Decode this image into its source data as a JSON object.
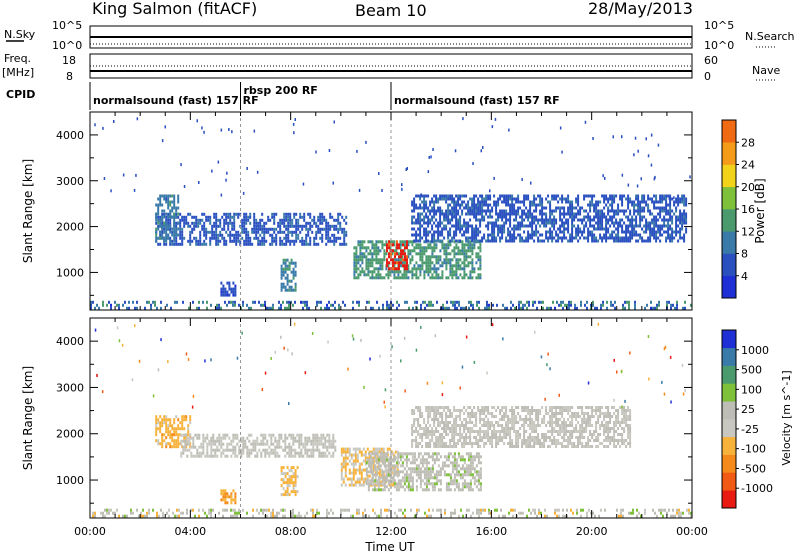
{
  "header": {
    "station": "King Salmon (fitACF)",
    "beam": "Beam 10",
    "date": "28/May/2013"
  },
  "summary_panels": {
    "nsky_label": "N.Sky",
    "nsky_ticks": [
      "10^5",
      "10^0"
    ],
    "nsearch_label": "N.Search",
    "nsearch_ticks": [
      "10^5",
      "10^0"
    ],
    "freq_label_line1": "Freq.",
    "freq_label_line2": "[MHz]",
    "freq_ticks": [
      "18",
      "8"
    ],
    "nave_label": "Nave",
    "nave_ticks": [
      "60",
      "0"
    ],
    "cpid_label": "CPID",
    "cpid_segments": [
      {
        "label": "normalsound (fast) 157 RF",
        "start_hour": 0,
        "end_hour": 6
      },
      {
        "label": "rbsp 200 RF",
        "start_hour": 6,
        "end_hour": 12
      },
      {
        "label": "normalsound (fast) 157 RF",
        "start_hour": 12,
        "end_hour": 24
      }
    ]
  },
  "axes": {
    "xlabel": "Time UT",
    "x_ticks": [
      "00:00",
      "04:00",
      "08:00",
      "12:00",
      "16:00",
      "20:00",
      "00:00"
    ],
    "x_range_hours": [
      0,
      24
    ],
    "ylabel": "Slant Range [km]",
    "y_ticks": [
      "1000",
      "2000",
      "3000",
      "4000"
    ],
    "y_range_km": [
      180,
      4500
    ]
  },
  "colors": {
    "power": [
      "#1f2fd6",
      "#2a50c0",
      "#3a7aa8",
      "#4a9a6e",
      "#7ec03a",
      "#f3d21a",
      "#f59b1a",
      "#f06a14",
      "#e51a12"
    ],
    "velocity": [
      "#e81a12",
      "#f05a14",
      "#f58a1a",
      "#f7b23a",
      "#c8c8c0",
      "#bdbdb5",
      "#7ec03a",
      "#4a9a6e",
      "#3a7aa8",
      "#1f2fd6"
    ]
  },
  "chart_data": [
    {
      "type": "heatmap",
      "title": "",
      "xlabel": "Time UT",
      "ylabel": "Slant Range [km]",
      "colorbar_label": "Power [dB]",
      "colorbar_ticks": [
        "4",
        "8",
        "12",
        "16",
        "20",
        "24",
        "28"
      ],
      "colorbar_range": [
        0,
        32
      ],
      "xlim": [
        0,
        24
      ],
      "ylim": [
        180,
        4500
      ],
      "regions": [
        {
          "start_hour": 2.6,
          "end_hour": 10.2,
          "range_low": 1600,
          "range_high": 2300,
          "value": 6
        },
        {
          "start_hour": 2.6,
          "end_hour": 3.5,
          "range_low": 1700,
          "range_high": 2700,
          "value": 9
        },
        {
          "start_hour": 10.5,
          "end_hour": 15.6,
          "range_low": 900,
          "range_high": 1700,
          "value": 12
        },
        {
          "start_hour": 11.8,
          "end_hour": 12.6,
          "range_low": 1100,
          "range_high": 1700,
          "value": 30
        },
        {
          "start_hour": 12.8,
          "end_hour": 23.8,
          "range_low": 1700,
          "range_high": 2700,
          "value": 6
        },
        {
          "start_hour": 7.6,
          "end_hour": 8.2,
          "range_low": 600,
          "range_high": 1300,
          "value": 10
        },
        {
          "start_hour": 5.2,
          "end_hour": 5.8,
          "range_low": 500,
          "range_high": 800,
          "value": 4
        },
        {
          "start_hour": 0.0,
          "end_hour": 24.0,
          "range_low": 200,
          "range_high": 380,
          "value": 8
        }
      ]
    },
    {
      "type": "heatmap",
      "title": "",
      "xlabel": "Time UT",
      "ylabel": "Slant Range [km]",
      "colorbar_label": "Velocity [m s^-1]",
      "colorbar_ticks": [
        "1000",
        "500",
        "100",
        "25",
        "-25",
        "-100",
        "-500",
        "-1000"
      ],
      "colorbar_range": [
        -1000,
        1000
      ],
      "xlim": [
        0,
        24
      ],
      "ylim": [
        180,
        4500
      ],
      "regions": [
        {
          "start_hour": 2.6,
          "end_hour": 4.0,
          "range_low": 1700,
          "range_high": 2400,
          "value": -300
        },
        {
          "start_hour": 3.6,
          "end_hour": 9.8,
          "range_low": 1500,
          "range_high": 2000,
          "value": 0
        },
        {
          "start_hour": 10.0,
          "end_hour": 12.3,
          "range_low": 900,
          "range_high": 1700,
          "value": -200
        },
        {
          "start_hour": 11.0,
          "end_hour": 15.6,
          "range_low": 800,
          "range_high": 1600,
          "value": 100
        },
        {
          "start_hour": 12.8,
          "end_hour": 21.5,
          "range_low": 1700,
          "range_high": 2600,
          "value": 0
        },
        {
          "start_hour": 7.6,
          "end_hour": 8.3,
          "range_low": 700,
          "range_high": 1300,
          "value": -250
        },
        {
          "start_hour": 5.2,
          "end_hour": 5.8,
          "range_low": 500,
          "range_high": 800,
          "value": -400
        },
        {
          "start_hour": 0.0,
          "end_hour": 24.0,
          "range_low": 200,
          "range_high": 380,
          "value": 0
        }
      ]
    }
  ]
}
